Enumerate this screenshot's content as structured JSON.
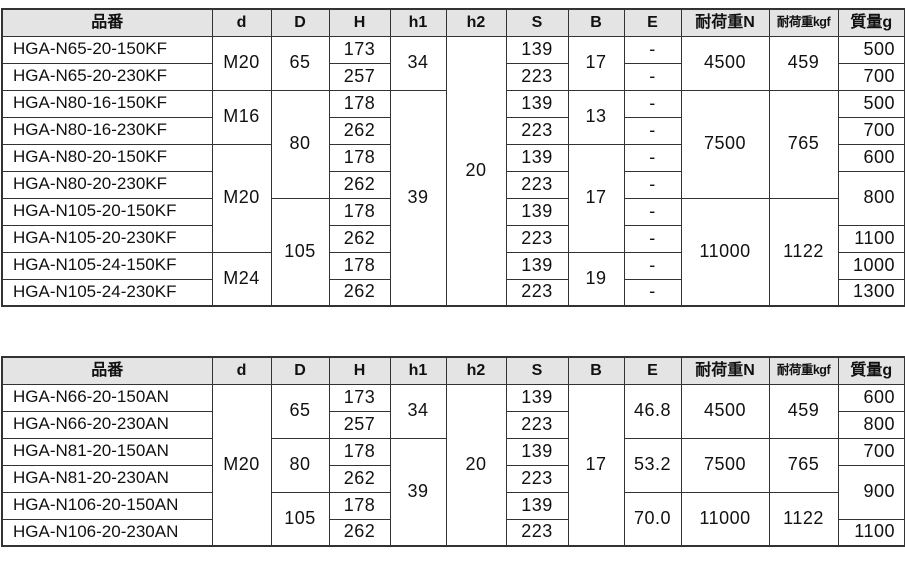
{
  "colors": {
    "border": "#333333",
    "header_bg": "#e4e4e4",
    "cell_bg": "#ffffff",
    "text": "#111111"
  },
  "tables": [
    {
      "name": "spec-table-kf",
      "headers": [
        "品番",
        "d",
        "D",
        "H",
        "h1",
        "h2",
        "S",
        "B",
        "E",
        "耐荷重N",
        "耐荷重kgf",
        "質量g"
      ],
      "keys": [
        "part-number",
        "d",
        "D",
        "H",
        "h1",
        "h2",
        "S",
        "B",
        "E",
        "load-capacity-n",
        "load-capacity-kgf",
        "mass-g"
      ],
      "rows": [
        [
          {
            "t": "HGA-N65-20-150KF"
          },
          {
            "t": "M20",
            "rs": 2
          },
          {
            "t": "65",
            "rs": 2
          },
          {
            "t": "173"
          },
          {
            "t": "34",
            "rs": 2
          },
          {
            "t": "20",
            "rs": 10
          },
          {
            "t": "139"
          },
          {
            "t": "17",
            "rs": 2
          },
          {
            "t": "-"
          },
          {
            "t": "4500",
            "rs": 2
          },
          {
            "t": "459",
            "rs": 2
          },
          {
            "t": "500"
          }
        ],
        [
          {
            "t": "HGA-N65-20-230KF"
          },
          {
            "t": "257"
          },
          {
            "t": "223"
          },
          {
            "t": "-"
          },
          {
            "t": "700"
          }
        ],
        [
          {
            "t": "HGA-N80-16-150KF"
          },
          {
            "t": "M16",
            "rs": 2
          },
          {
            "t": "80",
            "rs": 4
          },
          {
            "t": "178"
          },
          {
            "t": "39",
            "rs": 8
          },
          {
            "t": "139"
          },
          {
            "t": "13",
            "rs": 2
          },
          {
            "t": "-"
          },
          {
            "t": "7500",
            "rs": 4
          },
          {
            "t": "765",
            "rs": 4
          },
          {
            "t": "500"
          }
        ],
        [
          {
            "t": "HGA-N80-16-230KF"
          },
          {
            "t": "262"
          },
          {
            "t": "223"
          },
          {
            "t": "-"
          },
          {
            "t": "700"
          }
        ],
        [
          {
            "t": "HGA-N80-20-150KF"
          },
          {
            "t": "M20",
            "rs": 4
          },
          {
            "t": "178"
          },
          {
            "t": "139"
          },
          {
            "t": "17",
            "rs": 4
          },
          {
            "t": "-"
          },
          {
            "t": "600"
          }
        ],
        [
          {
            "t": "HGA-N80-20-230KF"
          },
          {
            "t": "262"
          },
          {
            "t": "223"
          },
          {
            "t": "-"
          },
          {
            "t": "800",
            "rs": 2
          }
        ],
        [
          {
            "t": "HGA-N105-20-150KF"
          },
          {
            "t": "105",
            "rs": 4
          },
          {
            "t": "178"
          },
          {
            "t": "139"
          },
          {
            "t": "-"
          },
          {
            "t": "11000",
            "rs": 4
          },
          {
            "t": "1122",
            "rs": 4
          }
        ],
        [
          {
            "t": "HGA-N105-20-230KF"
          },
          {
            "t": "262"
          },
          {
            "t": "223"
          },
          {
            "t": "-"
          },
          {
            "t": "1100"
          }
        ],
        [
          {
            "t": "HGA-N105-24-150KF"
          },
          {
            "t": "M24",
            "rs": 2
          },
          {
            "t": "178"
          },
          {
            "t": "139"
          },
          {
            "t": "19",
            "rs": 2
          },
          {
            "t": "-"
          },
          {
            "t": "1000"
          }
        ],
        [
          {
            "t": "HGA-N105-24-230KF"
          },
          {
            "t": "262"
          },
          {
            "t": "223"
          },
          {
            "t": "-"
          },
          {
            "t": "1300"
          }
        ]
      ]
    },
    {
      "name": "spec-table-an",
      "headers": [
        "品番",
        "d",
        "D",
        "H",
        "h1",
        "h2",
        "S",
        "B",
        "E",
        "耐荷重N",
        "耐荷重kgf",
        "質量g"
      ],
      "keys": [
        "part-number",
        "d",
        "D",
        "H",
        "h1",
        "h2",
        "S",
        "B",
        "E",
        "load-capacity-n",
        "load-capacity-kgf",
        "mass-g"
      ],
      "rows": [
        [
          {
            "t": "HGA-N66-20-150AN"
          },
          {
            "t": "M20",
            "rs": 6
          },
          {
            "t": "65",
            "rs": 2
          },
          {
            "t": "173"
          },
          {
            "t": "34",
            "rs": 2
          },
          {
            "t": "20",
            "rs": 6
          },
          {
            "t": "139"
          },
          {
            "t": "17",
            "rs": 6
          },
          {
            "t": "46.8",
            "rs": 2
          },
          {
            "t": "4500",
            "rs": 2
          },
          {
            "t": "459",
            "rs": 2
          },
          {
            "t": "600"
          }
        ],
        [
          {
            "t": "HGA-N66-20-230AN"
          },
          {
            "t": "257"
          },
          {
            "t": "223"
          },
          {
            "t": "800"
          }
        ],
        [
          {
            "t": "HGA-N81-20-150AN"
          },
          {
            "t": "80",
            "rs": 2
          },
          {
            "t": "178"
          },
          {
            "t": "39",
            "rs": 4
          },
          {
            "t": "139"
          },
          {
            "t": "53.2",
            "rs": 2
          },
          {
            "t": "7500",
            "rs": 2
          },
          {
            "t": "765",
            "rs": 2
          },
          {
            "t": "700"
          }
        ],
        [
          {
            "t": "HGA-N81-20-230AN"
          },
          {
            "t": "262"
          },
          {
            "t": "223"
          },
          {
            "t": "900",
            "rs": 2
          }
        ],
        [
          {
            "t": "HGA-N106-20-150AN"
          },
          {
            "t": "105",
            "rs": 2
          },
          {
            "t": "178"
          },
          {
            "t": "139"
          },
          {
            "t": "70.0",
            "rs": 2
          },
          {
            "t": "11000",
            "rs": 2
          },
          {
            "t": "1122",
            "rs": 2
          }
        ],
        [
          {
            "t": "HGA-N106-20-230AN"
          },
          {
            "t": "262"
          },
          {
            "t": "223"
          },
          {
            "t": "1100"
          }
        ]
      ]
    }
  ]
}
